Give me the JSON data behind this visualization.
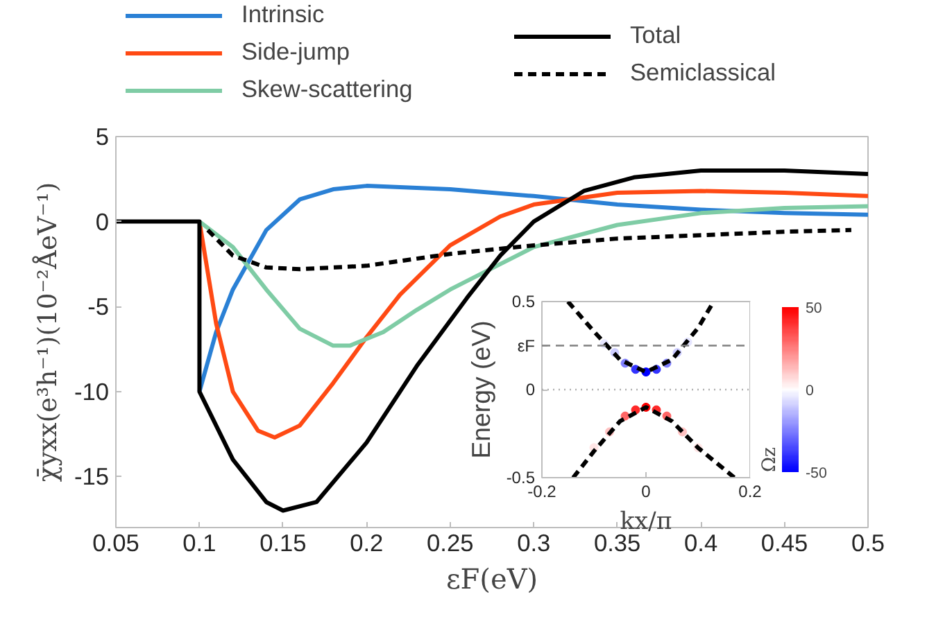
{
  "chart_data": [
    {
      "type": "line",
      "xlabel": "εF(eV)",
      "ylabel": "χ̄yxx(e³h⁻¹)(10⁻²ÅeV⁻¹)",
      "xlim": [
        0.05,
        0.5
      ],
      "xticks": [
        0.05,
        0.1,
        0.15,
        0.2,
        0.25,
        0.3,
        0.35,
        0.4,
        0.45,
        0.5
      ],
      "ylim": [
        -18,
        5
      ],
      "yticks": [
        -15,
        -10,
        -5,
        0,
        5
      ],
      "grid": false,
      "legend": "top",
      "series": [
        {
          "name": "Intrinsic",
          "color": "#2a80d5",
          "line_style": "solid",
          "x": [
            0.1,
            0.11,
            0.12,
            0.14,
            0.16,
            0.18,
            0.2,
            0.25,
            0.3,
            0.35,
            0.4,
            0.45,
            0.5
          ],
          "values": [
            -10,
            -6.5,
            -4,
            -0.5,
            1.3,
            1.9,
            2.1,
            1.9,
            1.5,
            1.0,
            0.7,
            0.5,
            0.4
          ]
        },
        {
          "name": "Side-jump",
          "color": "#ff4a14",
          "line_style": "solid",
          "x": [
            0.1,
            0.11,
            0.12,
            0.135,
            0.145,
            0.16,
            0.18,
            0.2,
            0.22,
            0.25,
            0.28,
            0.3,
            0.35,
            0.4,
            0.45,
            0.5
          ],
          "values": [
            0,
            -6,
            -10,
            -12.3,
            -12.7,
            -12,
            -9.5,
            -6.8,
            -4.3,
            -1.4,
            0.3,
            1.0,
            1.7,
            1.8,
            1.7,
            1.5
          ]
        },
        {
          "name": "Skew-scattering",
          "color": "#7fcca5",
          "line_style": "solid",
          "x": [
            0.1,
            0.12,
            0.14,
            0.16,
            0.18,
            0.19,
            0.21,
            0.23,
            0.25,
            0.28,
            0.3,
            0.35,
            0.4,
            0.45,
            0.5
          ],
          "values": [
            0,
            -1.5,
            -4,
            -6.3,
            -7.3,
            -7.3,
            -6.5,
            -5.2,
            -4.0,
            -2.5,
            -1.5,
            -0.2,
            0.5,
            0.8,
            0.9
          ]
        },
        {
          "name": "Total",
          "color": "#000000",
          "line_style": "solid",
          "x": [
            0.05,
            0.1,
            0.1,
            0.12,
            0.14,
            0.15,
            0.17,
            0.2,
            0.23,
            0.26,
            0.28,
            0.3,
            0.33,
            0.36,
            0.4,
            0.45,
            0.5
          ],
          "values": [
            0,
            0,
            -10,
            -14,
            -16.5,
            -17,
            -16.5,
            -13,
            -8.5,
            -4.5,
            -2,
            0,
            1.8,
            2.6,
            3.0,
            3.0,
            2.8
          ]
        },
        {
          "name": "Semiclassical",
          "color": "#000000",
          "line_style": "dashed",
          "x": [
            0.105,
            0.12,
            0.14,
            0.16,
            0.2,
            0.25,
            0.3,
            0.35,
            0.4,
            0.45,
            0.49
          ],
          "values": [
            -0.5,
            -2,
            -2.7,
            -2.8,
            -2.6,
            -1.9,
            -1.4,
            -1.0,
            -0.8,
            -0.6,
            -0.5
          ]
        }
      ]
    },
    {
      "type": "line",
      "xlabel": "kx/π",
      "ylabel": "Energy (eV)",
      "clabel": "Ωz",
      "xlim": [
        -0.2,
        0.2
      ],
      "xticks": [
        -0.2,
        0,
        0.2
      ],
      "ylim": [
        -0.5,
        0.5
      ],
      "yticks": [
        -0.5,
        0,
        0.5
      ],
      "clim": [
        -50,
        50
      ],
      "cticks": [
        -50,
        0,
        50
      ],
      "grid": false,
      "ref_lines": [
        {
          "axis": "y",
          "value": 0.25,
          "label": "εF",
          "color": "#808080",
          "line_style": "dashed"
        },
        {
          "axis": "y",
          "value": 0,
          "label": null,
          "color": "#b0b0b0",
          "line_style": "dotted"
        }
      ],
      "series": [
        {
          "type": "scatter",
          "marker": "circle",
          "x": [
            -0.08,
            -0.06,
            -0.04,
            -0.02,
            0,
            0.02,
            0.04,
            0.06,
            0.08
          ],
          "values": [
            0.26,
            0.21,
            0.15,
            0.115,
            0.1,
            0.115,
            0.15,
            0.21,
            0.27
          ],
          "cvalues": [
            -5,
            -10,
            -25,
            -40,
            -50,
            -40,
            -25,
            -10,
            -5
          ],
          "colors": [
            "#e6e6ff",
            "#ccccff",
            "#8080ff",
            "#3333ff",
            "#0000ff",
            "#3333ff",
            "#8080ff",
            "#ccccff",
            "#e6e6ff"
          ]
        },
        {
          "type": "scatter",
          "marker": "circle",
          "x": [
            -0.1,
            -0.07,
            -0.04,
            -0.02,
            0,
            0.02,
            0.04,
            0.07,
            0.1
          ],
          "values": [
            -0.33,
            -0.24,
            -0.15,
            -0.115,
            -0.1,
            -0.115,
            -0.15,
            -0.24,
            -0.33
          ],
          "cvalues": [
            5,
            12,
            30,
            42,
            50,
            42,
            30,
            12,
            5
          ],
          "colors": [
            "#ffe6e6",
            "#ffc2c2",
            "#ff6666",
            "#ff2929",
            "#ff0000",
            "#ff2929",
            "#ff6666",
            "#ffc2c2",
            "#ffe6e6"
          ]
        },
        {
          "type": "line",
          "color": "#000000",
          "line_style": "dashed",
          "x": [
            -0.15,
            -0.1,
            -0.05,
            0,
            0.05,
            0.1,
            0.13
          ],
          "values": [
            0.5,
            0.33,
            0.17,
            0.1,
            0.17,
            0.35,
            0.5
          ]
        },
        {
          "type": "line",
          "color": "#000000",
          "line_style": "dashed",
          "x": [
            -0.14,
            -0.1,
            -0.05,
            0,
            0.05,
            0.1,
            0.17
          ],
          "values": [
            -0.5,
            -0.35,
            -0.18,
            -0.1,
            -0.18,
            -0.33,
            -0.5
          ]
        }
      ]
    }
  ]
}
